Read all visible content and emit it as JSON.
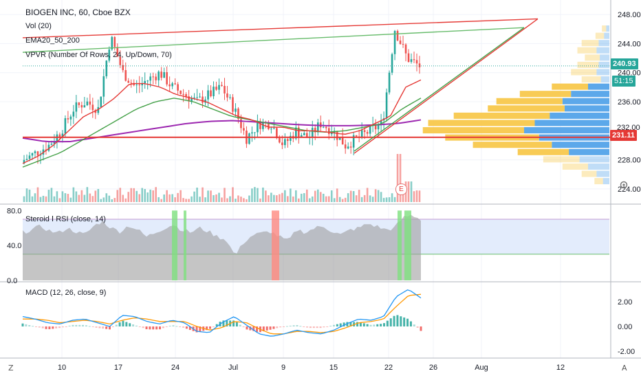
{
  "legend": {
    "title": "BIOGEN INC, 60, Cboe BZX",
    "vol": "Vol (20)",
    "ema": "EMA20_50_200",
    "vpvr": "VPVR (Number Of Rows, 24, Up/Down, 70)",
    "rsi": "Steroid Ⅰ RSI (close, 14)",
    "macd": "MACD (12, 26, close, 9)"
  },
  "price_badges": {
    "last_price": "240.93",
    "countdown": "51:15",
    "level": "231.11",
    "partly_hidden_tick": "232.00"
  },
  "earnings_marker": "E",
  "icons": {
    "zoom": "Z",
    "auto": "A",
    "gear": "settings-gear-icon"
  },
  "colors": {
    "up": "#26a69a",
    "down": "#ef5350",
    "ema20": "#e53935",
    "ema50": "#43a047",
    "ema200": "#9c27b0",
    "rsi_band": "#e3ecfc",
    "macd_line": "#2196f3",
    "signal_line": "#ff9800",
    "vp_up": "#f7c542",
    "vp_down": "#4a9ee8"
  },
  "chart_data": [
    {
      "type": "candlestick",
      "title": "BIOGEN INC, 60, Cboe BZX",
      "ylim": [
        222,
        250
      ],
      "y_ticks": [
        224.0,
        228.0,
        236.0,
        240.0,
        244.0,
        248.0
      ],
      "y_tick_labels": [
        "224.00",
        "228.00",
        "236.00",
        "240.00",
        "244.00",
        "248.00"
      ],
      "x_tick_labels": [
        "10",
        "17",
        "24",
        "Jul",
        "9",
        "15",
        "22",
        "26",
        "Aug",
        "12"
      ],
      "horizontal_level": 231.11,
      "last_price": 240.93,
      "closes_sampled": [
        228,
        229,
        230,
        232,
        235,
        236,
        235,
        245,
        240,
        238,
        239,
        240,
        238,
        237,
        236,
        237,
        238,
        235,
        231,
        233,
        233,
        230,
        232,
        231,
        233,
        232,
        230,
        231,
        232,
        233,
        246,
        242,
        240.9
      ],
      "ema20_sampled": [
        227.5,
        228.5,
        230,
        232,
        234,
        235,
        236.5,
        238.5,
        238.5,
        238,
        237,
        236.5,
        236,
        235,
        234,
        233.5,
        232.5,
        232.5,
        232,
        232,
        231.8,
        231.5,
        232,
        233,
        234,
        238,
        239
      ],
      "ema50_sampled": [
        227,
        228,
        229,
        230.5,
        232,
        233.5,
        235,
        236,
        236.5,
        236,
        235,
        234,
        233.5,
        233,
        232.5,
        232,
        231.8,
        232,
        232.5,
        233,
        235,
        236.5
      ],
      "ema200_sampled": [
        231,
        230.5,
        230.5,
        231,
        231.5,
        232,
        232.5,
        233,
        233.3,
        233.4,
        233.2,
        233,
        232.8,
        232.7,
        232.7,
        232.8,
        233,
        233.5
      ],
      "trendlines": [
        {
          "name": "red-resistance",
          "from": [
            "Jun 3",
            244.8
          ],
          "to": [
            "Aug 7",
            247.4
          ]
        },
        {
          "name": "green-resistance",
          "from": [
            "Jun 3",
            242.8
          ],
          "to": [
            "Aug 6",
            246.2
          ]
        },
        {
          "name": "green-support",
          "from": [
            "Jul 17",
            229.2
          ],
          "to": [
            "Aug 6",
            246.2
          ]
        },
        {
          "name": "red-support",
          "from": [
            "Jul 17",
            228.9
          ],
          "to": [
            "Aug 7",
            247.4
          ]
        }
      ],
      "volume_profile_rows": [
        {
          "price": 246,
          "up": 4,
          "down": 3
        },
        {
          "price": 245,
          "up": 8,
          "down": 5
        },
        {
          "price": 244,
          "up": 16,
          "down": 10
        },
        {
          "price": 243,
          "up": 18,
          "down": 12
        },
        {
          "price": 242,
          "up": 14,
          "down": 9
        },
        {
          "price": 241,
          "up": 20,
          "down": 10
        },
        {
          "price": 240,
          "up": 24,
          "down": 12
        },
        {
          "price": 239,
          "up": 18,
          "down": 8
        },
        {
          "price": 238,
          "up": 34,
          "down": 20
        },
        {
          "price": 237,
          "up": 48,
          "down": 36
        },
        {
          "price": 236,
          "up": 62,
          "down": 44
        },
        {
          "price": 235,
          "up": 72,
          "down": 42
        },
        {
          "price": 234,
          "up": 90,
          "down": 56
        },
        {
          "price": 233,
          "up": 100,
          "down": 70
        },
        {
          "price": 232,
          "up": 95,
          "down": 80
        },
        {
          "price": 231,
          "up": 88,
          "down": 66
        },
        {
          "price": 230,
          "up": 74,
          "down": 54
        },
        {
          "price": 229,
          "up": 48,
          "down": 38
        },
        {
          "price": 228,
          "up": 34,
          "down": 28
        },
        {
          "price": 227,
          "up": 24,
          "down": 20
        },
        {
          "price": 226,
          "up": 14,
          "down": 12
        },
        {
          "price": 225,
          "up": 8,
          "down": 6
        }
      ]
    },
    {
      "type": "bar",
      "title": "Vol (20)",
      "note": "volume histogram overlaid at bottom of price pane; highest spike at the earnings session (Jul 22)"
    },
    {
      "type": "area",
      "title": "Steroid Ⅰ RSI (close, 14)",
      "ylim": [
        0,
        85
      ],
      "y_ticks": [
        0,
        40,
        80
      ],
      "y_tick_labels": [
        "0.0",
        "40.0",
        "80.0"
      ],
      "overbought": 70,
      "oversold": 30,
      "values_sampled": [
        55,
        58,
        62,
        57,
        54,
        60,
        56,
        52,
        62,
        68,
        60,
        56,
        63,
        58,
        50,
        55,
        60,
        64,
        58,
        55,
        60,
        56,
        50,
        47,
        28,
        44,
        52,
        54,
        56,
        50,
        45,
        58,
        55,
        60,
        62,
        56,
        52,
        58,
        60,
        65,
        62,
        58,
        60,
        72,
        75,
        70
      ]
    },
    {
      "type": "line",
      "title": "MACD (12, 26, close, 9)",
      "ylim": [
        -2.5,
        3.5
      ],
      "y_ticks": [
        -2.0,
        0.0,
        2.0
      ],
      "y_tick_labels": [
        "-2.00",
        "0.00",
        "2.00"
      ],
      "series": [
        {
          "name": "MACD",
          "values": [
            0.8,
            0.6,
            0.3,
            0.2,
            0.5,
            0.6,
            0.3,
            0.0,
            0.9,
            0.8,
            0.4,
            0.2,
            0.5,
            0.3,
            -0.4,
            -0.5,
            0.3,
            0.8,
            0.1,
            -0.6,
            -0.8,
            -0.6,
            -0.3,
            -0.5,
            -0.6,
            -0.3,
            0.2,
            0.6,
            0.5,
            0.8,
            2.4,
            3.0,
            2.3
          ]
        },
        {
          "name": "Signal",
          "values": [
            0.6,
            0.6,
            0.5,
            0.3,
            0.4,
            0.5,
            0.4,
            0.2,
            0.5,
            0.7,
            0.6,
            0.4,
            0.4,
            0.4,
            0.0,
            -0.3,
            -0.1,
            0.4,
            0.3,
            -0.2,
            -0.6,
            -0.6,
            -0.4,
            -0.4,
            -0.5,
            -0.4,
            -0.1,
            0.3,
            0.4,
            0.6,
            1.6,
            2.5,
            2.6
          ]
        }
      ]
    }
  ]
}
